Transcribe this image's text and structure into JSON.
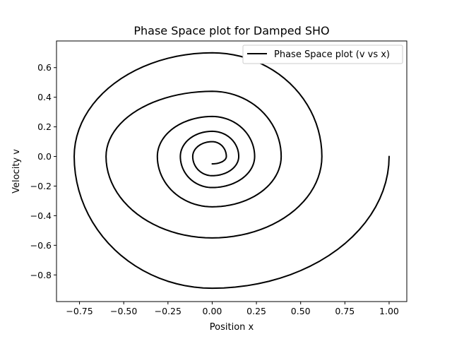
{
  "chart_data": {
    "type": "line",
    "title": "Phase Space plot for Damped SHO",
    "xlabel": "Position x",
    "ylabel": "Velocity v",
    "xlim": [
      -0.88,
      1.1
    ],
    "ylim": [
      -0.98,
      0.78
    ],
    "xticks": [
      -0.75,
      -0.5,
      -0.25,
      0.0,
      0.25,
      0.5,
      0.75,
      1.0
    ],
    "xtick_labels": [
      "−0.75",
      "−0.50",
      "−0.25",
      "0.00",
      "0.25",
      "0.50",
      "0.75",
      "1.00"
    ],
    "yticks": [
      -0.8,
      -0.6,
      -0.4,
      -0.2,
      0.0,
      0.2,
      0.4,
      0.6
    ],
    "ytick_labels": [
      "−0.8",
      "−0.6",
      "−0.4",
      "−0.2",
      "0.0",
      "0.2",
      "0.4",
      "0.6"
    ],
    "grid": false,
    "legend": "top-right",
    "line_color": "#000000",
    "series": [
      {
        "name": "Phase Space plot (v vs x)",
        "initial_state": {
          "x": 1.0,
          "v": 0.0
        },
        "x_extrema": [
          1.0,
          -0.78,
          0.62,
          -0.6,
          0.39,
          -0.31,
          0.24,
          -0.18,
          0.15,
          -0.11,
          0.08
        ],
        "v_extrema": [
          -0.89,
          0.7,
          -0.55,
          0.44,
          -0.34,
          0.27,
          -0.21,
          0.17,
          -0.13,
          0.1,
          -0.05
        ]
      }
    ]
  }
}
